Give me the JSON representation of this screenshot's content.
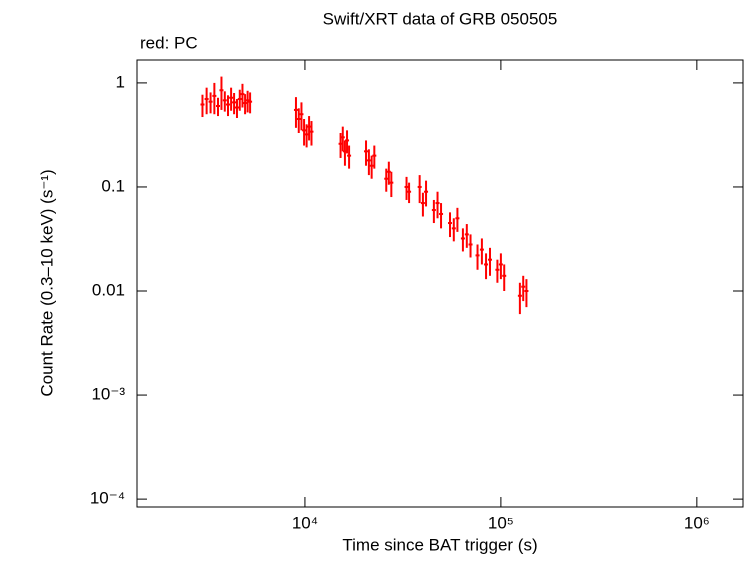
{
  "chart_data": {
    "type": "errorbar",
    "title": "Swift/XRT data of GRB 050505",
    "subtitle": "red: PC",
    "x_label": "Time since BAT trigger (s)",
    "y_label": "Count Rate (0.3–10 keV) (s⁻¹)",
    "log_x": true,
    "log_y": true,
    "xlim": [
      1390,
      1720000
    ],
    "ylim": [
      8.4e-05,
      1.66
    ],
    "xticks": [
      {
        "value": 10000,
        "label": "10⁴"
      },
      {
        "value": 100000,
        "label": "10⁵"
      },
      {
        "value": 1000000,
        "label": "10⁶"
      }
    ],
    "yticks": [
      {
        "value": 0.0001,
        "label": "10⁻⁴"
      },
      {
        "value": 0.001,
        "label": "10⁻³"
      },
      0.01,
      0.1,
      1
    ],
    "series": [
      {
        "color": "#ff0000",
        "x": [
          3000,
          3150,
          3300,
          3450,
          3600,
          3750,
          3900,
          4050,
          4200,
          4350,
          4500,
          4650,
          4800,
          4950,
          5100,
          5250,
          9000,
          9300,
          9600,
          9900,
          10200,
          10500,
          10800,
          15200,
          15600,
          16000,
          16400,
          16800,
          20500,
          21200,
          21900,
          22600,
          26000,
          26800,
          27600,
          33000,
          34000,
          38500,
          40000,
          41500,
          45500,
          47500,
          49500,
          55000,
          57500,
          60000,
          64000,
          67000,
          70000,
          76000,
          80000,
          84000,
          88000,
          96000,
          100000,
          104000,
          125000,
          130000,
          135000
        ],
        "values": [
          0.62,
          0.7,
          0.66,
          0.75,
          0.6,
          0.85,
          0.68,
          0.62,
          0.72,
          0.65,
          0.58,
          0.7,
          0.78,
          0.64,
          0.68,
          0.66,
          0.55,
          0.45,
          0.5,
          0.35,
          0.32,
          0.38,
          0.34,
          0.26,
          0.3,
          0.22,
          0.28,
          0.2,
          0.22,
          0.18,
          0.16,
          0.2,
          0.12,
          0.14,
          0.11,
          0.1,
          0.09,
          0.1,
          0.07,
          0.09,
          0.06,
          0.07,
          0.055,
          0.045,
          0.04,
          0.05,
          0.032,
          0.035,
          0.028,
          0.022,
          0.025,
          0.018,
          0.02,
          0.016,
          0.018,
          0.014,
          0.009,
          0.011,
          0.01
        ],
        "yerr": [
          0.15,
          0.2,
          0.15,
          0.25,
          0.12,
          0.3,
          0.15,
          0.14,
          0.18,
          0.15,
          0.12,
          0.16,
          0.2,
          0.14,
          0.16,
          0.15,
          0.18,
          0.12,
          0.15,
          0.1,
          0.08,
          0.1,
          0.09,
          0.07,
          0.08,
          0.06,
          0.07,
          0.05,
          0.06,
          0.05,
          0.04,
          0.05,
          0.03,
          0.035,
          0.03,
          0.025,
          0.02,
          0.03,
          0.018,
          0.025,
          0.015,
          0.02,
          0.015,
          0.012,
          0.01,
          0.013,
          0.008,
          0.009,
          0.007,
          0.006,
          0.007,
          0.005,
          0.006,
          0.004,
          0.005,
          0.004,
          0.003,
          0.003,
          0.003
        ]
      }
    ]
  }
}
